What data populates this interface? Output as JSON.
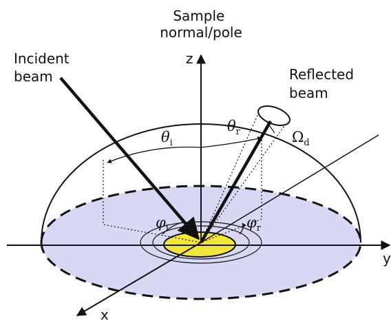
{
  "labels": {
    "sample_normal": [
      "Sample",
      "normal/pole"
    ],
    "z": "z",
    "incident_beam": [
      "Incident",
      "beam"
    ],
    "reflected_beam": [
      "Reflected",
      "beam"
    ],
    "theta_i": {
      "symbol": "θ",
      "sub": "i"
    },
    "theta_r": {
      "symbol": "θ",
      "sub": "r"
    },
    "omega_d": {
      "symbol": "Ω",
      "sub": "d"
    },
    "phi_i": {
      "symbol": "φ",
      "sub": "i"
    },
    "phi_r": {
      "symbol": "φ",
      "sub": "r"
    },
    "x": "x",
    "y": "y"
  }
}
